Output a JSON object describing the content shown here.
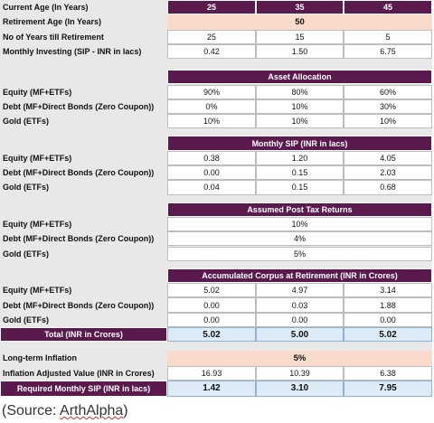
{
  "header": {
    "label": "Current Age (In Years)",
    "values": [
      "25",
      "35",
      "45"
    ]
  },
  "retirement_age": {
    "label": "Retirement Age (In Years)",
    "value": "50"
  },
  "rows_top": [
    {
      "label": "No of Years till Retirement",
      "values": [
        "25",
        "15",
        "5"
      ]
    },
    {
      "label": "Monthly Investing (SIP - INR in lacs)",
      "values": [
        "0.42",
        "1.50",
        "6.75"
      ]
    }
  ],
  "sections": [
    {
      "title": "Asset Allocation",
      "rows": [
        {
          "label": "Equity (MF+ETFs)",
          "values": [
            "90%",
            "80%",
            "60%"
          ]
        },
        {
          "label": "Debt (MF+Direct Bonds (Zero Coupon))",
          "values": [
            "0%",
            "10%",
            "30%"
          ]
        },
        {
          "label": "Gold (ETFs)",
          "values": [
            "10%",
            "10%",
            "10%"
          ]
        }
      ]
    },
    {
      "title": "Monthly SIP (INR in lacs)",
      "rows": [
        {
          "label": "Equity (MF+ETFs)",
          "values": [
            "0.38",
            "1.20",
            "4.05"
          ]
        },
        {
          "label": "Debt (MF+Direct Bonds (Zero Coupon))",
          "values": [
            "0.00",
            "0.15",
            "2.03"
          ]
        },
        {
          "label": "Gold (ETFs)",
          "values": [
            "0.04",
            "0.15",
            "0.68"
          ]
        }
      ]
    },
    {
      "title": "Assumed Post Tax Returns",
      "rows": [
        {
          "label": "Equity (MF+ETFs)",
          "value": "10%"
        },
        {
          "label": "Debt (MF+Direct Bonds (Zero Coupon))",
          "value": "4%"
        },
        {
          "label": "Gold (ETFs)",
          "value": "5%"
        }
      ]
    },
    {
      "title": "Accumulated Corpus at Retirement (INR in Crores)",
      "rows": [
        {
          "label": "Equity (MF+ETFs)",
          "values": [
            "5.02",
            "4.97",
            "3.14"
          ]
        },
        {
          "label": "Debt (MF+Direct Bonds (Zero Coupon))",
          "values": [
            "0.00",
            "0.03",
            "1.88"
          ]
        },
        {
          "label": "Gold (ETFs)",
          "values": [
            "0.00",
            "0.00",
            "0.00"
          ]
        }
      ],
      "total": {
        "label": "Total (INR in Crores)",
        "values": [
          "5.02",
          "5.00",
          "5.02"
        ]
      }
    }
  ],
  "inflation": {
    "label": "Long-term Inflation",
    "value": "5%"
  },
  "inflation_adjusted": {
    "label": "Inflation Adjusted Value (INR in Crores)",
    "values": [
      "16.93",
      "10.39",
      "6.38"
    ]
  },
  "required_sip": {
    "label": "Required Monthly SIP (INR in lacs)",
    "values": [
      "1.42",
      "3.10",
      "7.95"
    ]
  },
  "source": {
    "open": "(Source: ",
    "name": "ArthAlpha",
    "close": ")"
  }
}
